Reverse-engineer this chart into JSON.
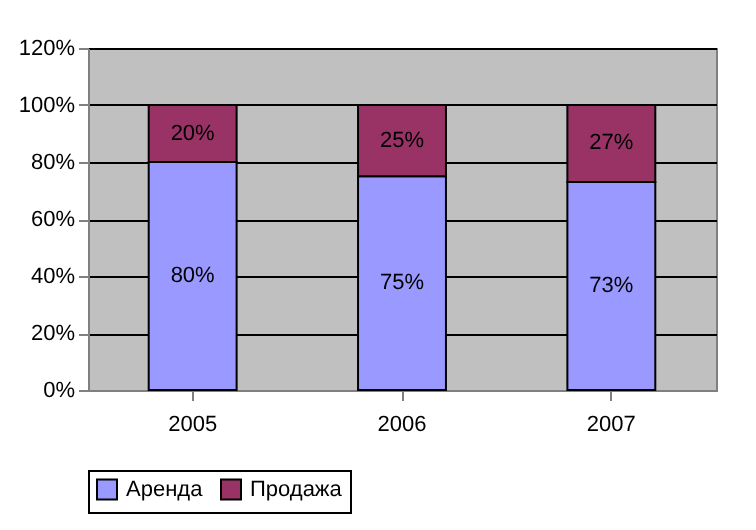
{
  "chart_data": {
    "type": "bar",
    "stacked": true,
    "categories": [
      "2005",
      "2006",
      "2007"
    ],
    "series": [
      {
        "name": "Аренда",
        "color": "#9999ff",
        "values": [
          80,
          75,
          73
        ],
        "value_labels": [
          "80%",
          "75%",
          "73%"
        ]
      },
      {
        "name": "Продажа",
        "color": "#993366",
        "values": [
          20,
          25,
          27
        ],
        "value_labels": [
          "20%",
          "25%",
          "27%"
        ]
      }
    ],
    "ylim": [
      0,
      120
    ],
    "yticks": [
      {
        "value": 0,
        "label": "0%"
      },
      {
        "value": 20,
        "label": "20%"
      },
      {
        "value": 40,
        "label": "40%"
      },
      {
        "value": 60,
        "label": "60%"
      },
      {
        "value": 80,
        "label": "80%"
      },
      {
        "value": 100,
        "label": "100%"
      },
      {
        "value": 120,
        "label": "120%"
      }
    ],
    "grid": "y",
    "legend": "bottom"
  }
}
